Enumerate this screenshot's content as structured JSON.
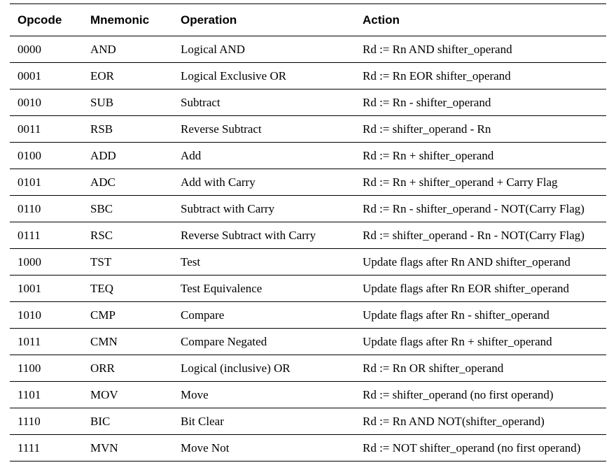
{
  "table": {
    "headers": [
      "Opcode",
      "Mnemonic",
      "Operation",
      "Action"
    ],
    "rows": [
      [
        "0000",
        "AND",
        "Logical AND",
        "Rd := Rn AND shifter_operand"
      ],
      [
        "0001",
        "EOR",
        "Logical Exclusive OR",
        "Rd := Rn EOR shifter_operand"
      ],
      [
        "0010",
        "SUB",
        "Subtract",
        "Rd := Rn - shifter_operand"
      ],
      [
        "0011",
        "RSB",
        "Reverse Subtract",
        "Rd := shifter_operand - Rn"
      ],
      [
        "0100",
        "ADD",
        "Add",
        "Rd := Rn + shifter_operand"
      ],
      [
        "0101",
        "ADC",
        "Add with Carry",
        "Rd := Rn + shifter_operand + Carry Flag"
      ],
      [
        "0110",
        "SBC",
        "Subtract with Carry",
        "Rd := Rn - shifter_operand - NOT(Carry Flag)"
      ],
      [
        "0111",
        "RSC",
        "Reverse Subtract with Carry",
        "Rd := shifter_operand - Rn - NOT(Carry Flag)"
      ],
      [
        "1000",
        "TST",
        "Test",
        "Update flags after Rn AND shifter_operand"
      ],
      [
        "1001",
        "TEQ",
        "Test Equivalence",
        "Update flags after Rn EOR shifter_operand"
      ],
      [
        "1010",
        "CMP",
        "Compare",
        "Update flags after Rn - shifter_operand"
      ],
      [
        "1011",
        "CMN",
        "Compare Negated",
        "Update flags after Rn + shifter_operand"
      ],
      [
        "1100",
        "ORR",
        "Logical (inclusive) OR",
        "Rd := Rn OR shifter_operand"
      ],
      [
        "1101",
        "MOV",
        "Move",
        "Rd := shifter_operand (no first operand)"
      ],
      [
        "1110",
        "BIC",
        "Bit Clear",
        "Rd := Rn AND NOT(shifter_operand)"
      ],
      [
        "1111",
        "MVN",
        "Move Not",
        "Rd := NOT shifter_operand (no first operand)"
      ]
    ]
  }
}
